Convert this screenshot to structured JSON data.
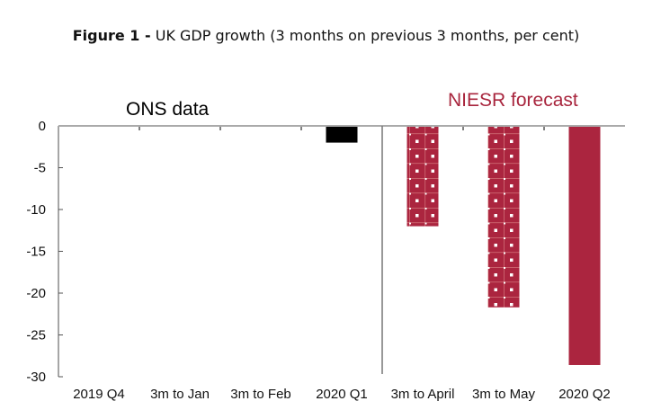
{
  "title": {
    "prefix": "Figure 1 -",
    "text": "UK GDP growth (3 months on previous 3 months, per cent)"
  },
  "chart_data": {
    "type": "bar",
    "title": "Figure 1 - UK GDP growth (3 months on previous 3 months, per cent)",
    "categories": [
      "2019 Q4",
      "3m to Jan",
      "3m to Feb",
      "2020 Q1",
      "3m to April",
      "3m to May",
      "2020 Q2"
    ],
    "values": [
      0,
      0,
      0,
      -2.0,
      -12.0,
      -21.7,
      -28.6
    ],
    "bar_styles": [
      "solid-black",
      "solid-black",
      "solid-black",
      "solid-black",
      "dotted-red",
      "dotted-red",
      "solid-red"
    ],
    "ylim": [
      -30,
      0
    ],
    "yticks": [
      0,
      -5,
      -10,
      -15,
      -20,
      -25,
      -30
    ],
    "xlabel": "",
    "ylabel": "",
    "grid": false,
    "annotations": [
      {
        "text": "ONS data",
        "color": "#000000"
      },
      {
        "text": "NIESR forecast",
        "color": "#a8253d"
      }
    ],
    "colors": {
      "ons": "#000000",
      "forecast": "#ab253f"
    }
  }
}
